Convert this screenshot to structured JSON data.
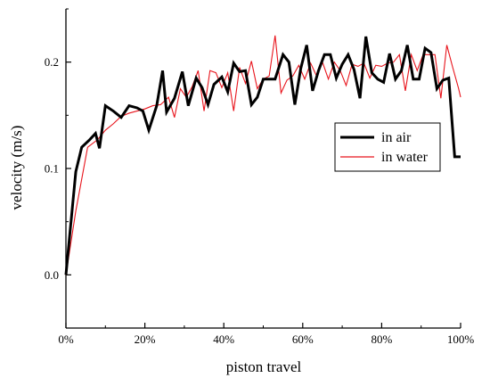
{
  "chart_data": {
    "type": "line",
    "xlabel": "piston travel",
    "ylabel": "velocity (m/s)",
    "xlim": [
      0,
      100
    ],
    "ylim": [
      -0.05,
      0.25
    ],
    "x_ticks": [
      0,
      20,
      40,
      60,
      80,
      100
    ],
    "x_tick_labels": [
      "0%",
      "20%",
      "40%",
      "60%",
      "80%",
      "100%"
    ],
    "y_ticks": [
      0.0,
      0.1,
      0.2
    ],
    "y_tick_labels": [
      "0.0",
      "0.1",
      "0.2"
    ],
    "grid": false,
    "legend_position": "center-right",
    "series": [
      {
        "name": "in air",
        "color": "#000000",
        "x": [
          0,
          2.5,
          4,
          6,
          7.5,
          8.5,
          10,
          12,
          14,
          16,
          18,
          19.5,
          21,
          23,
          24.5,
          25.5,
          27.5,
          29.5,
          31,
          33,
          34.5,
          36,
          37.5,
          39.5,
          41,
          42.5,
          44,
          45.5,
          47,
          48.5,
          50,
          51.5,
          53,
          55,
          56.5,
          58,
          59.5,
          61,
          62.5,
          64,
          65.5,
          67,
          68.5,
          70,
          71.5,
          73,
          74.5,
          76,
          77.5,
          79,
          80.5,
          82,
          83.5,
          85,
          86.5,
          88,
          89.5,
          91,
          92.5,
          94,
          95.5,
          97,
          98.5,
          99.3,
          100
        ],
        "y": [
          0.0,
          0.097,
          0.12,
          0.127,
          0.133,
          0.119,
          0.159,
          0.154,
          0.148,
          0.159,
          0.157,
          0.154,
          0.136,
          0.159,
          0.192,
          0.153,
          0.166,
          0.191,
          0.159,
          0.185,
          0.176,
          0.16,
          0.179,
          0.186,
          0.172,
          0.199,
          0.191,
          0.192,
          0.16,
          0.167,
          0.184,
          0.184,
          0.184,
          0.207,
          0.2,
          0.16,
          0.194,
          0.216,
          0.173,
          0.192,
          0.207,
          0.207,
          0.185,
          0.198,
          0.207,
          0.193,
          0.166,
          0.224,
          0.19,
          0.184,
          0.181,
          0.208,
          0.184,
          0.192,
          0.216,
          0.184,
          0.184,
          0.213,
          0.209,
          0.175,
          0.183,
          0.185,
          0.111,
          0.111,
          0.111
        ]
      },
      {
        "name": "in water",
        "color": "#e8141c",
        "x": [
          0,
          2.5,
          5.5,
          8,
          10,
          12,
          14,
          16,
          18,
          20,
          22,
          24,
          26,
          27.5,
          29,
          30.5,
          32,
          33.5,
          35,
          36.5,
          38,
          39.5,
          41,
          42.5,
          44,
          45.5,
          47,
          48.5,
          50,
          51.5,
          53,
          54.5,
          56,
          57.5,
          59,
          60.5,
          62,
          63.5,
          65,
          66.5,
          68,
          69.5,
          71,
          72.5,
          74,
          75.5,
          77,
          78.5,
          80,
          81.5,
          83,
          84.5,
          86,
          87.5,
          89,
          90.5,
          92,
          93.5,
          95,
          96.5,
          98,
          99.5,
          100
        ],
        "y": [
          0.0,
          0.06,
          0.12,
          0.127,
          0.136,
          0.142,
          0.149,
          0.152,
          0.154,
          0.156,
          0.159,
          0.16,
          0.167,
          0.148,
          0.175,
          0.167,
          0.177,
          0.192,
          0.154,
          0.192,
          0.19,
          0.176,
          0.19,
          0.154,
          0.195,
          0.18,
          0.201,
          0.175,
          0.184,
          0.187,
          0.225,
          0.171,
          0.183,
          0.187,
          0.197,
          0.184,
          0.199,
          0.187,
          0.2,
          0.184,
          0.2,
          0.192,
          0.178,
          0.198,
          0.196,
          0.199,
          0.185,
          0.197,
          0.196,
          0.199,
          0.2,
          0.207,
          0.173,
          0.207,
          0.192,
          0.207,
          0.207,
          0.207,
          0.166,
          0.216,
          0.195,
          0.175,
          0.167
        ]
      }
    ]
  }
}
